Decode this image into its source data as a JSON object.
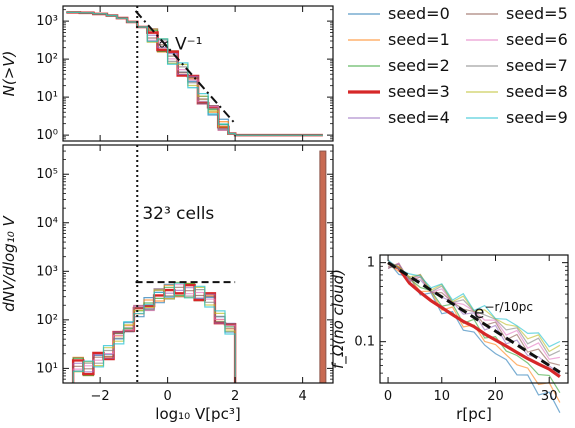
{
  "legend": {
    "entries": [
      {
        "label": "seed=0",
        "color": "#1f77b4"
      },
      {
        "label": "seed=1",
        "color": "#ff7f0e"
      },
      {
        "label": "seed=2",
        "color": "#2ca02c"
      },
      {
        "label": "seed=3",
        "color": "#d62728"
      },
      {
        "label": "seed=4",
        "color": "#9467bd"
      },
      {
        "label": "seed=5",
        "color": "#8c564b"
      },
      {
        "label": "seed=6",
        "color": "#e377c2"
      },
      {
        "label": "seed=7",
        "color": "#7f7f7f"
      },
      {
        "label": "seed=8",
        "color": "#bcbd22"
      },
      {
        "label": "seed=9",
        "color": "#17becf"
      }
    ]
  },
  "chart_data": [
    {
      "type": "line",
      "panel": "top-left",
      "ylabel": "N(>V)",
      "yscale": "log",
      "xlim": [
        -3.1,
        4.9
      ],
      "ylim": [
        0.7,
        2500
      ],
      "yticks": [
        {
          "v": 1,
          "label": "10⁰"
        },
        {
          "v": 10,
          "label": "10¹"
        },
        {
          "v": 100,
          "label": "10²"
        },
        {
          "v": 1000,
          "label": "10³"
        }
      ],
      "annotation": "∝ V⁻¹",
      "guide": {
        "x": [
          -0.95,
          2.0
        ],
        "y": [
          1850,
          2.0
        ],
        "style": "dash-dot"
      },
      "vline_x": -0.9,
      "series_x": [
        -3.0,
        -2.6,
        -2.2,
        -1.8,
        -1.5,
        -1.2,
        -0.9,
        -0.6,
        -0.3,
        0.0,
        0.3,
        0.6,
        0.9,
        1.2,
        1.5,
        1.8,
        2.0,
        4.6
      ],
      "series_y": [
        1700,
        1650,
        1550,
        1400,
        1200,
        950,
        700,
        420,
        230,
        110,
        55,
        24,
        10,
        4,
        2,
        1.1,
        1,
        1
      ]
    },
    {
      "type": "bar",
      "panel": "bottom-left",
      "xlabel": "log₁₀ V[pc³]",
      "ylabel": "dNV/dlog₁₀ V",
      "yscale": "log",
      "xlim": [
        -3.1,
        4.9
      ],
      "ylim": [
        5,
        400000
      ],
      "xticks": [
        {
          "v": -2,
          "label": "−2"
        },
        {
          "v": 0,
          "label": "0"
        },
        {
          "v": 2,
          "label": "2"
        },
        {
          "v": 4,
          "label": "4"
        }
      ],
      "yticks": [
        {
          "v": 10,
          "label": "10¹"
        },
        {
          "v": 100,
          "label": "10²"
        },
        {
          "v": 1000,
          "label": "10³"
        },
        {
          "v": 10000,
          "label": "10⁴"
        },
        {
          "v": 100000,
          "label": "10⁵"
        }
      ],
      "annotation": "32³ cells",
      "guide": {
        "x": [
          -0.95,
          2.0
        ],
        "y": [
          600,
          600
        ],
        "style": "dashed"
      },
      "vline_x": -0.9,
      "bins_x": [
        -2.8,
        -2.5,
        -2.2,
        -1.9,
        -1.6,
        -1.3,
        -1.0,
        -0.7,
        -0.4,
        -0.1,
        0.2,
        0.5,
        0.8,
        1.1,
        1.4,
        1.7
      ],
      "bins_y": [
        12,
        10,
        15,
        22,
        40,
        80,
        140,
        220,
        310,
        380,
        420,
        400,
        350,
        250,
        120,
        60
      ],
      "spike": {
        "x": 4.6,
        "y": 300000
      }
    },
    {
      "type": "line",
      "panel": "right",
      "xlabel": "r[pc]",
      "ylabel": "f_Ω(no cloud)",
      "yscale": "log",
      "xlim": [
        -1.5,
        33.5
      ],
      "ylim": [
        0.03,
        1.25
      ],
      "xticks": [
        {
          "v": 0,
          "label": "0"
        },
        {
          "v": 10,
          "label": "10"
        },
        {
          "v": 20,
          "label": "20"
        },
        {
          "v": 30,
          "label": "30"
        }
      ],
      "yticks": [
        {
          "v": 1,
          "label": "1"
        },
        {
          "v": 0.1,
          "label": "0.1"
        }
      ],
      "annotation": "e^{−r/10pc}",
      "annotation_main": "e",
      "annotation_sup": "−r/10pc",
      "guide": {
        "x": [
          0,
          32
        ],
        "y": [
          1.0,
          0.041
        ],
        "style": "dashed"
      },
      "series_x": [
        0,
        2,
        4,
        6,
        8,
        10,
        12,
        14,
        16,
        18,
        20,
        22,
        24,
        26,
        28,
        30,
        32
      ],
      "series_y": [
        1.0,
        0.85,
        0.55,
        0.42,
        0.33,
        0.27,
        0.22,
        0.18,
        0.155,
        0.125,
        0.105,
        0.088,
        0.073,
        0.061,
        0.052,
        0.045,
        0.036
      ]
    }
  ]
}
